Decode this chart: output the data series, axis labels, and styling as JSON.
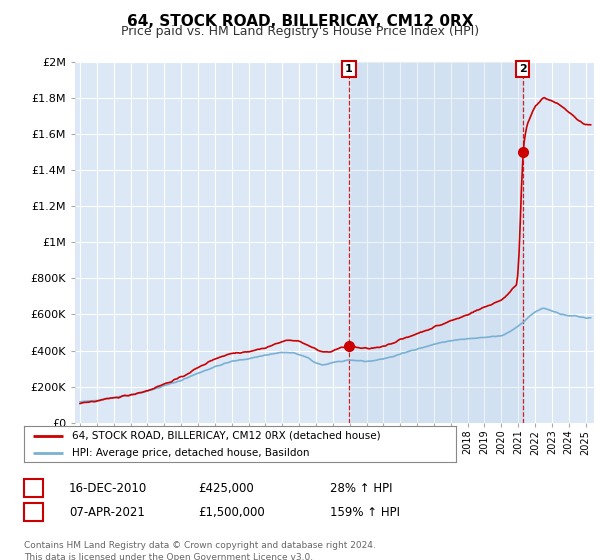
{
  "title": "64, STOCK ROAD, BILLERICAY, CM12 0RX",
  "subtitle": "Price paid vs. HM Land Registry's House Price Index (HPI)",
  "footer": "Contains HM Land Registry data © Crown copyright and database right 2024.\nThis data is licensed under the Open Government Licence v3.0.",
  "legend_line1": "64, STOCK ROAD, BILLERICAY, CM12 0RX (detached house)",
  "legend_line2": "HPI: Average price, detached house, Basildon",
  "sale1_date": "16-DEC-2010",
  "sale1_price": "£425,000",
  "sale1_hpi": "28% ↑ HPI",
  "sale2_date": "07-APR-2021",
  "sale2_price": "£1,500,000",
  "sale2_hpi": "159% ↑ HPI",
  "background_color": "#dce8f5",
  "red_color": "#cc0000",
  "blue_color": "#7ab0d4",
  "shade_color": "#dce8f5",
  "ylim": [
    0,
    2000000
  ],
  "xlim_start": 1994.7,
  "xlim_end": 2025.5,
  "sale1_x": 2010.96,
  "sale1_y": 425000,
  "sale2_x": 2021.27,
  "sale2_y": 1500000
}
